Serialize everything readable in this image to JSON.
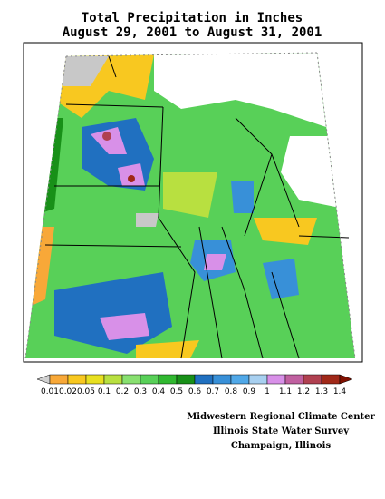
{
  "header": {
    "title": "Total Precipitation in Inches",
    "subtitle": "August 29, 2001  to  August 31, 2001"
  },
  "legend": {
    "labels": [
      "0.01",
      "0.02",
      "0.05",
      "0.1",
      "0.2",
      "0.3",
      "0.4",
      "0.5",
      "0.6",
      "0.7",
      "0.8",
      "0.9",
      "1",
      "1.1",
      "1.2",
      "1.3",
      "1.4"
    ],
    "colors": [
      "#f8a838",
      "#f8c820",
      "#e8e020",
      "#b8e040",
      "#88e070",
      "#58d058",
      "#30b830",
      "#189018",
      "#2070c0",
      "#3890d8",
      "#50a8e8",
      "#a8d0f0",
      "#d890e8",
      "#c060a0",
      "#b04050",
      "#a02818"
    ],
    "low_color": "#d0d0d0",
    "high_color": "#801000"
  },
  "credits": [
    "Midwestern Regional Climate Center",
    "Illinois State Water Survey",
    "Champaign, Illinois"
  ]
}
